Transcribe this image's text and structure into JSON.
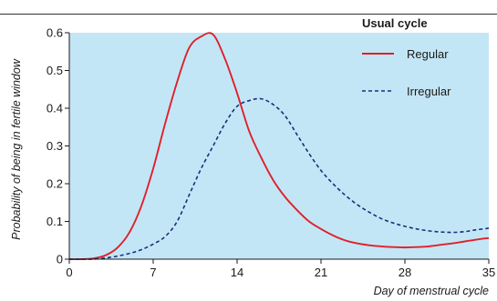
{
  "chart_data": {
    "type": "line",
    "title": "",
    "xlabel": "Day of menstrual cycle",
    "ylabel": "Probability of being in fertile window",
    "xlim": [
      0,
      35
    ],
    "ylim": [
      0,
      0.6
    ],
    "xticks": [
      0,
      7,
      14,
      21,
      28,
      35
    ],
    "yticks": [
      0,
      0.1,
      0.2,
      0.3,
      0.4,
      0.5,
      0.6
    ],
    "xtick_labels": [
      "0",
      "7",
      "14",
      "21",
      "28",
      "35"
    ],
    "ytick_labels": [
      "0",
      "0.1",
      "0.2",
      "0.3",
      "0.4",
      "0.5",
      "0.6"
    ],
    "grid": false,
    "legend": {
      "title": "Usual cycle",
      "position": "top-right"
    },
    "colors": {
      "plot_background": "#c3e6f6",
      "regular": "#e0202a",
      "irregular": "#1a2f7a"
    },
    "series": [
      {
        "name": "Regular",
        "style": "solid",
        "x": [
          0,
          1,
          2,
          3,
          4,
          5,
          6,
          7,
          8,
          9,
          10,
          11,
          12,
          13,
          14,
          15,
          16,
          17,
          18,
          19,
          20,
          21,
          22,
          23,
          24,
          25,
          26,
          27,
          28,
          29,
          30,
          31,
          32,
          33,
          34,
          35
        ],
        "y": [
          0.0,
          0.0,
          0.002,
          0.01,
          0.03,
          0.07,
          0.14,
          0.24,
          0.36,
          0.47,
          0.56,
          0.59,
          0.595,
          0.53,
          0.44,
          0.34,
          0.27,
          0.21,
          0.165,
          0.13,
          0.1,
          0.08,
          0.063,
          0.05,
          0.042,
          0.037,
          0.034,
          0.032,
          0.031,
          0.032,
          0.034,
          0.038,
          0.042,
          0.047,
          0.052,
          0.056
        ]
      },
      {
        "name": "Irregular",
        "style": "dashed",
        "x": [
          0,
          1,
          2,
          3,
          4,
          5,
          6,
          7,
          8,
          9,
          10,
          11,
          12,
          13,
          14,
          15,
          16,
          17,
          18,
          19,
          20,
          21,
          22,
          23,
          24,
          25,
          26,
          27,
          28,
          29,
          30,
          31,
          32,
          33,
          34,
          35
        ],
        "y": [
          0.0,
          0.0,
          0.0,
          0.003,
          0.008,
          0.015,
          0.025,
          0.04,
          0.06,
          0.1,
          0.17,
          0.24,
          0.3,
          0.36,
          0.405,
          0.42,
          0.425,
          0.41,
          0.38,
          0.33,
          0.28,
          0.235,
          0.2,
          0.17,
          0.145,
          0.125,
          0.108,
          0.096,
          0.087,
          0.08,
          0.075,
          0.072,
          0.071,
          0.073,
          0.078,
          0.082
        ]
      }
    ]
  }
}
